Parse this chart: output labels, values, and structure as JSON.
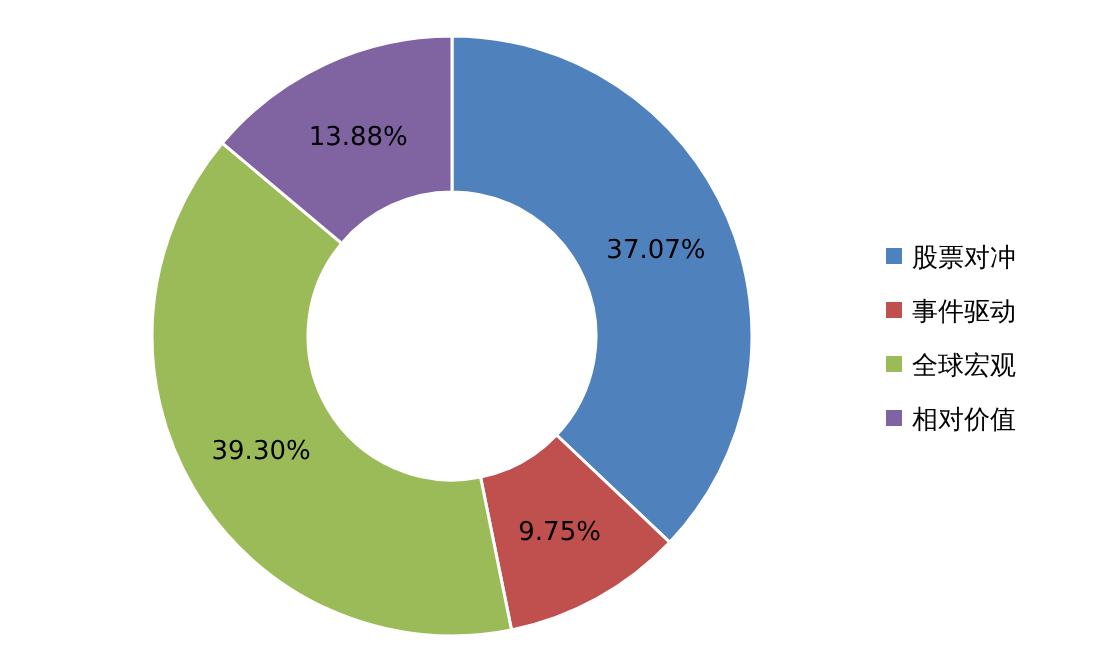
{
  "chart_data": {
    "type": "donut",
    "categories": [
      "股票对冲",
      "事件驱动",
      "全球宏观",
      "相对价值"
    ],
    "values": [
      37.07,
      9.75,
      39.3,
      13.88
    ],
    "colors": [
      "#4f81bd",
      "#c0504d",
      "#9bbb59",
      "#8064a2"
    ],
    "value_labels": [
      "37.07%",
      "9.75%",
      "39.30%",
      "13.88%"
    ],
    "legend": "right"
  }
}
